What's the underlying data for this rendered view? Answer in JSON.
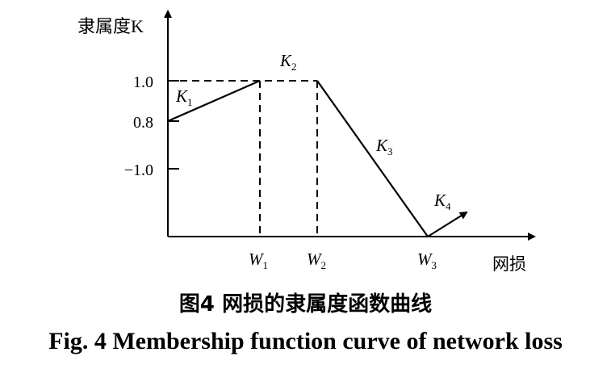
{
  "chart_data": {
    "type": "line",
    "ylabel": "隶属度K",
    "xlabel": "网损",
    "y_ticks": [
      {
        "label": "1.0",
        "value": 1.0
      },
      {
        "label": "0.8",
        "value": 0.8
      },
      {
        "label": "−1.0",
        "value": -1.0
      }
    ],
    "x_ticks": [
      {
        "base": "W",
        "sub": "1"
      },
      {
        "base": "W",
        "sub": "2"
      },
      {
        "base": "W",
        "sub": "3"
      }
    ],
    "segments": [
      {
        "base": "K",
        "sub": "1"
      },
      {
        "base": "K",
        "sub": "2"
      },
      {
        "base": "K",
        "sub": "3"
      },
      {
        "base": "K",
        "sub": "4"
      }
    ]
  },
  "caption": {
    "cn": "图4  网损的隶属度函数曲线",
    "en": "Fig. 4  Membership function curve of network loss"
  }
}
